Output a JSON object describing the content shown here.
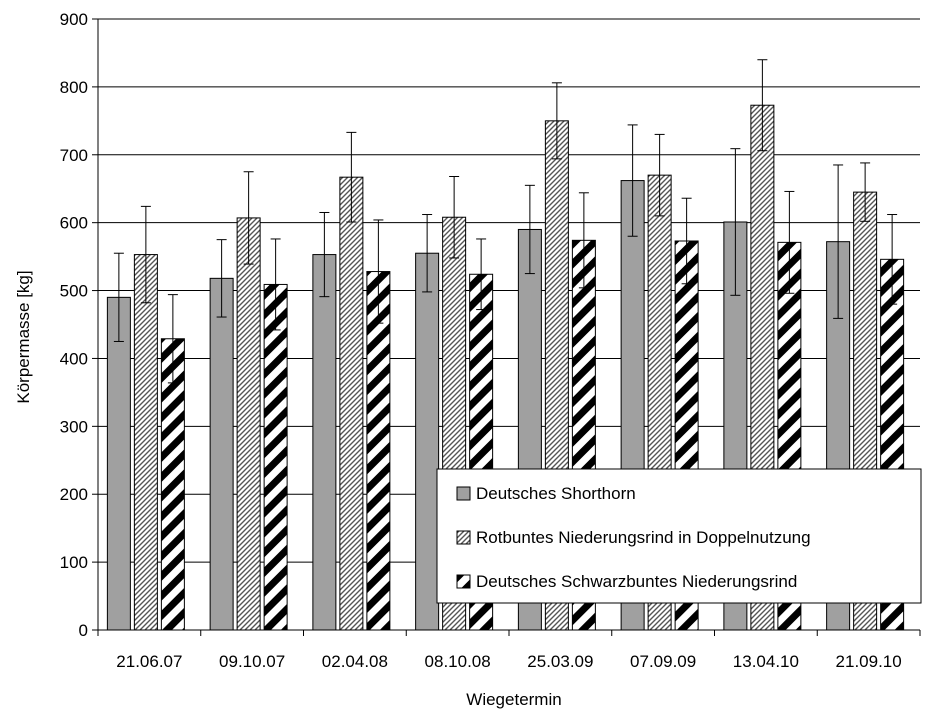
{
  "chart_data": {
    "type": "bar",
    "xlabel": "Wiegetermin",
    "ylabel": "Körpermasse [kg]",
    "ylim": [
      0,
      900
    ],
    "yticks": [
      0,
      100,
      200,
      300,
      400,
      500,
      600,
      700,
      800,
      900
    ],
    "grid": "horizontal",
    "legend_position": "lower-right",
    "categories": [
      "21.06.07",
      "09.10.07",
      "02.04.08",
      "08.10.08",
      "25.03.09",
      "07.09.09",
      "13.04.10",
      "21.09.10"
    ],
    "series": [
      {
        "name": "Deutsches Shorthorn",
        "fill": "gray",
        "values": [
          490,
          518,
          553,
          555,
          590,
          662,
          601,
          572
        ],
        "error": [
          65,
          57,
          62,
          57,
          65,
          82,
          108,
          113
        ]
      },
      {
        "name": "Rotbuntes Niederungsrind in Doppelnutzung",
        "fill": "fine-diagonal-hatch",
        "values": [
          553,
          607,
          667,
          608,
          750,
          670,
          773,
          645
        ],
        "error": [
          71,
          68,
          66,
          60,
          56,
          60,
          67,
          43
        ]
      },
      {
        "name": "Deutsches Schwarzbuntes Niederungsrind",
        "fill": "bold-diagonal-stripes",
        "values": [
          429,
          509,
          528,
          524,
          574,
          573,
          571,
          546
        ],
        "error": [
          65,
          67,
          76,
          52,
          70,
          63,
          75,
          66
        ]
      }
    ]
  }
}
